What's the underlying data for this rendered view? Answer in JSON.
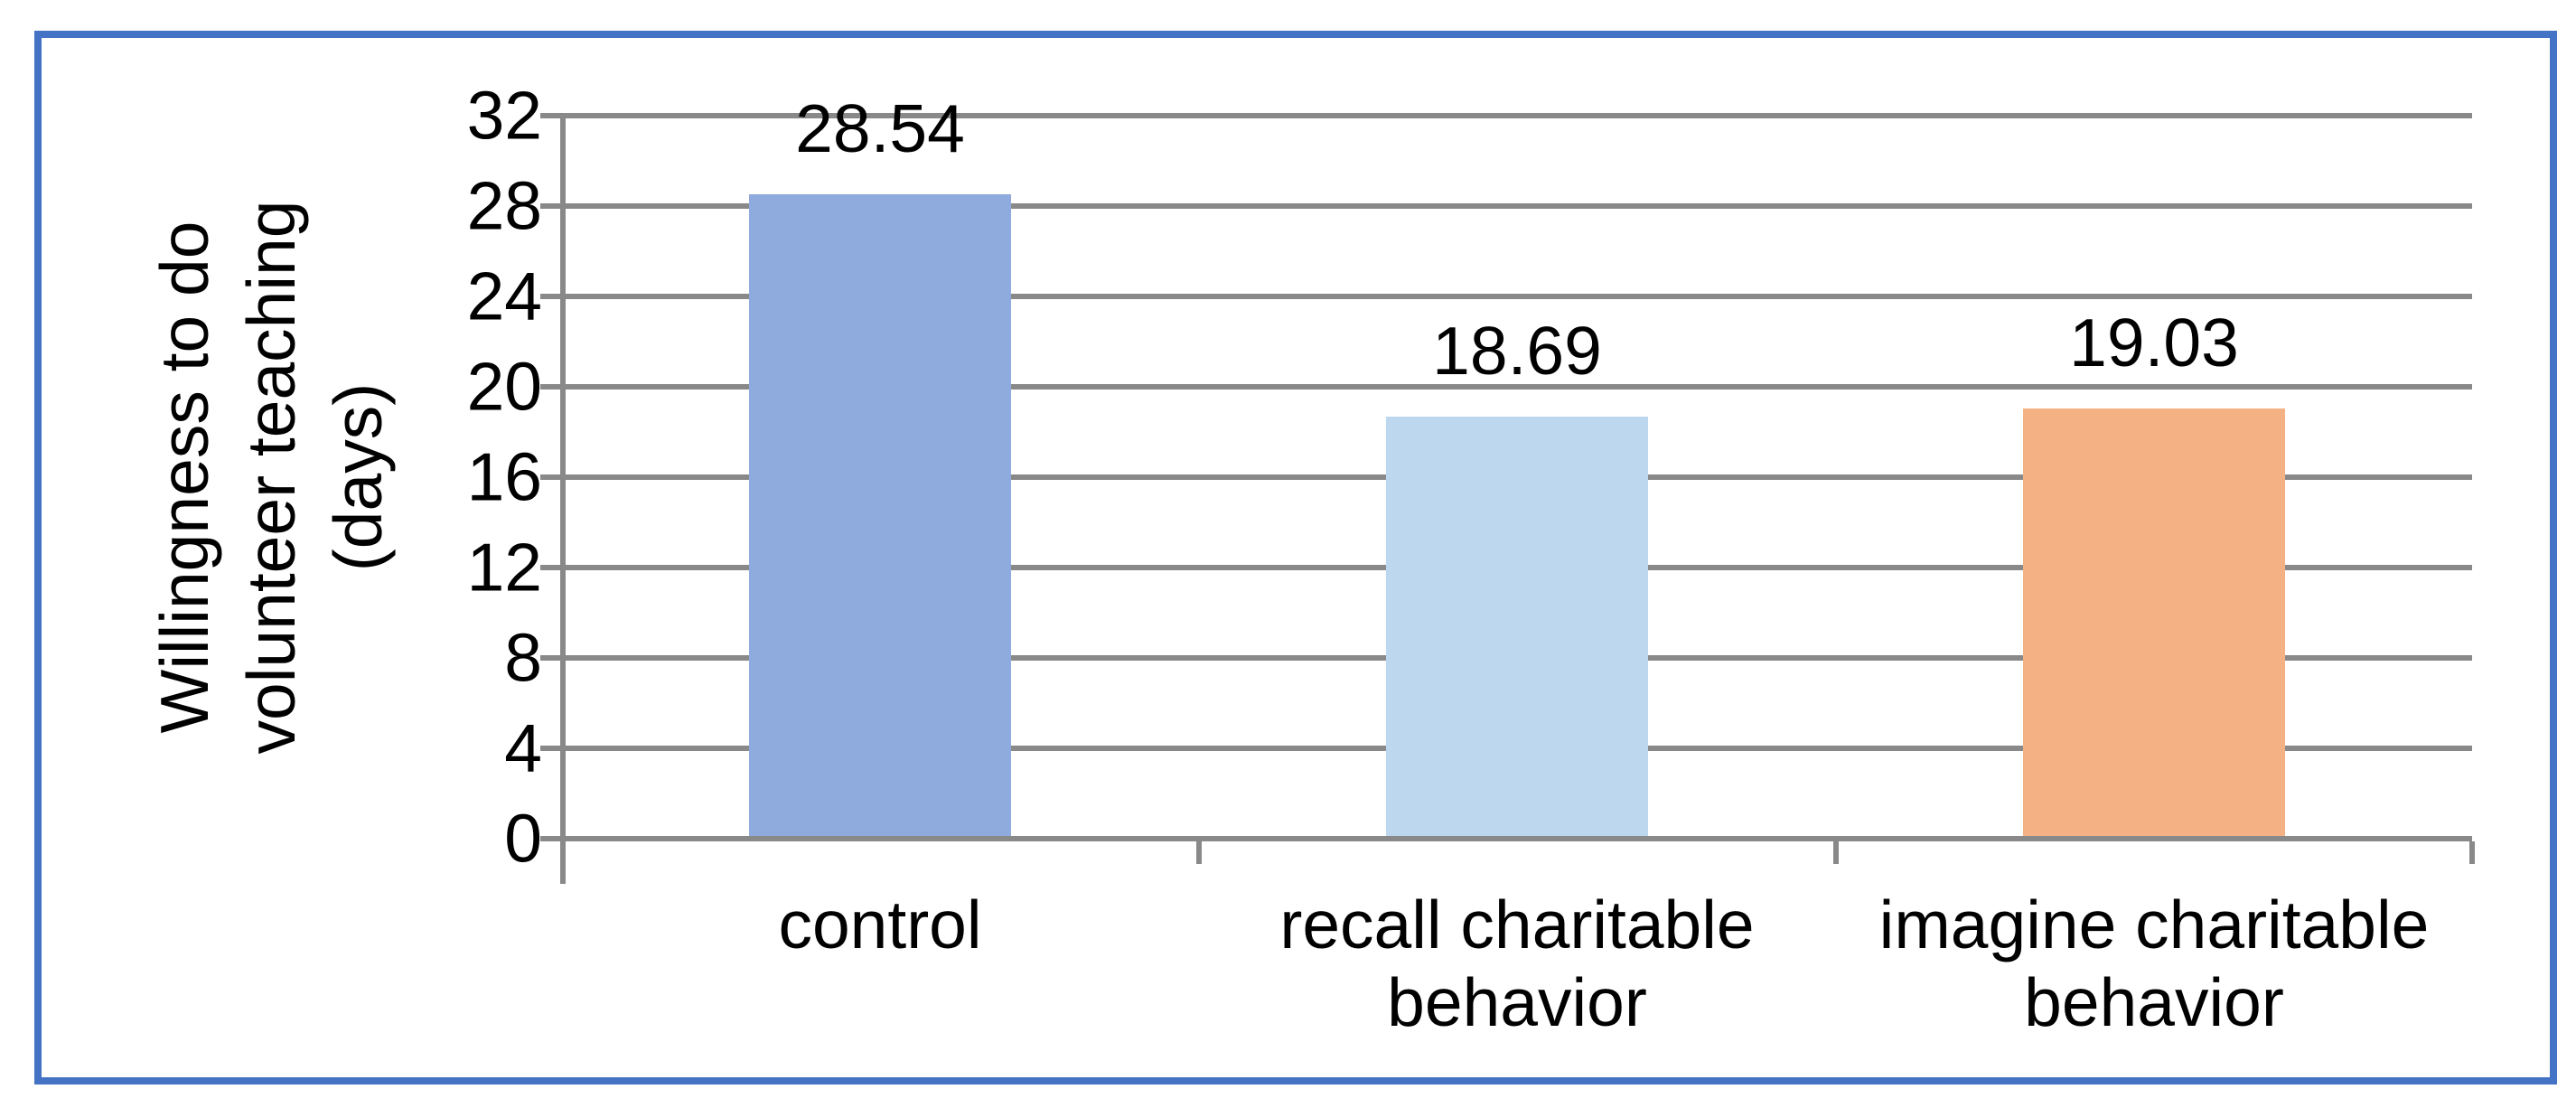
{
  "chart": {
    "border_color": "#4472C4",
    "grid_color": "#898989",
    "text_color": "#000000",
    "background": "#FFFFFF"
  },
  "chart_data": {
    "type": "bar",
    "title": "",
    "categories": [
      "control",
      "recall charitable behavior",
      "imagine charitable behavior"
    ],
    "values": [
      28.54,
      18.69,
      19.03
    ],
    "value_labels": [
      "28.54",
      "18.69",
      "19.03"
    ],
    "bar_colors": [
      "#8FAADC",
      "#BDD7EE",
      "#F4B183"
    ],
    "xlabel": "",
    "ylabel": "Willingness to do volunteer teaching (days)",
    "ylabel_lines": [
      "Willingness to do",
      "volunteer teaching",
      "(days)"
    ],
    "ylim": [
      0,
      32
    ],
    "ytick_step": 4,
    "yticks": [
      "32",
      "28",
      "24",
      "20",
      "16",
      "12",
      "8",
      "4",
      "0"
    ],
    "grid": true,
    "legend": false
  }
}
